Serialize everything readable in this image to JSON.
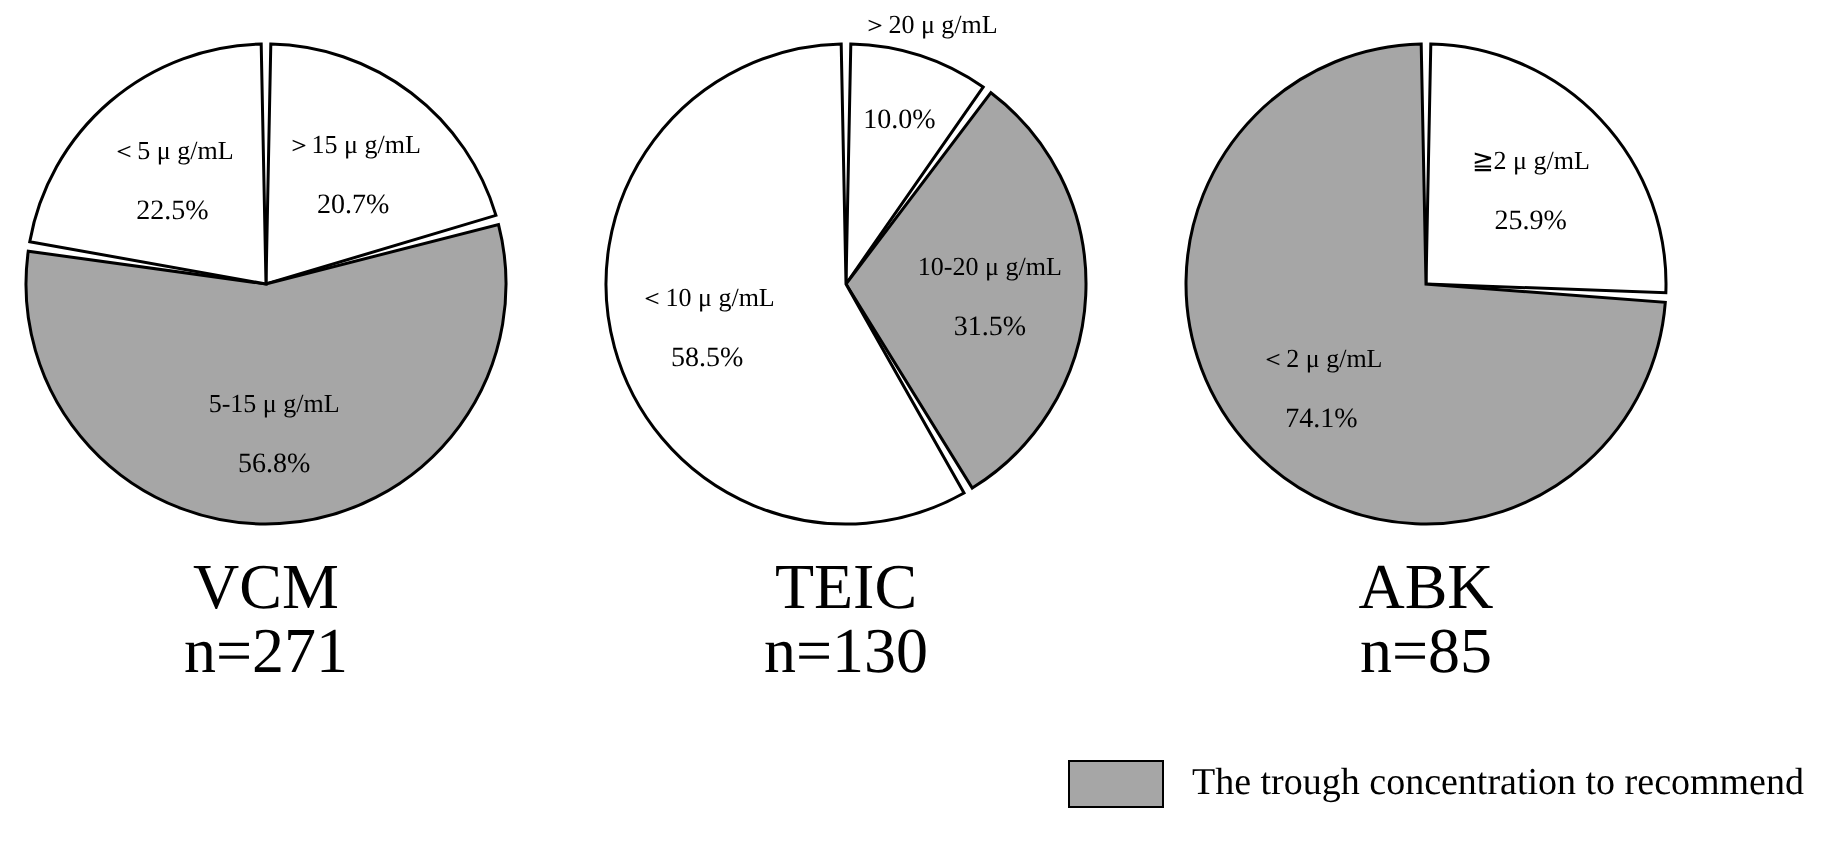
{
  "chart_data": [
    {
      "type": "pie",
      "title": "VCM",
      "subtitle": "n=271",
      "categories": [
        "＞15 μ g/mL",
        "5-15 μ g/mL",
        "＜5 μ g/mL"
      ],
      "values": [
        20.7,
        56.8,
        22.5
      ],
      "value_labels": [
        "20.7%",
        "56.8%",
        "22.5%"
      ],
      "colors": [
        "#ffffff",
        "#a6a6a6",
        "#ffffff"
      ]
    },
    {
      "type": "pie",
      "title": "TEIC",
      "subtitle": "n=130",
      "categories": [
        "＞20 μ g/mL",
        "10-20 μ g/mL",
        "＜10 μ g/mL"
      ],
      "values": [
        10.0,
        31.5,
        58.5
      ],
      "value_labels": [
        "10.0%",
        "31.5%",
        "58.5%"
      ],
      "colors": [
        "#ffffff",
        "#a6a6a6",
        "#ffffff"
      ]
    },
    {
      "type": "pie",
      "title": "ABK",
      "subtitle": "n=85",
      "categories": [
        "≧2 μ g/mL",
        "＜2 μ g/mL"
      ],
      "values": [
        25.9,
        74.1
      ],
      "value_labels": [
        "25.9%",
        "74.1%"
      ],
      "colors": [
        "#ffffff",
        "#a6a6a6"
      ],
      "annotations": [
        "The trough concentration to recommend"
      ]
    }
  ]
}
